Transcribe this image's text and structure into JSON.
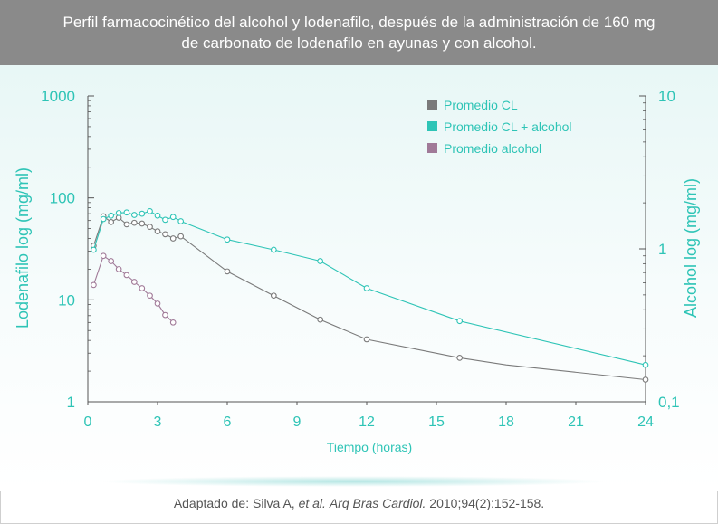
{
  "header": {
    "line1": "Perfil farmacocinético del alcohol y lodenafilo, después de la administración de 160 mg",
    "line2": "de carbonato de lodenafilo en ayunas y con alcohol."
  },
  "footer": {
    "prefix": "Adaptado de: Silva A, ",
    "etal": "et al.",
    "journal": "Arq Bras Cardiol.",
    "rest": " 2010;94(2):152-158."
  },
  "colors": {
    "teal": "#2ec4b6",
    "gray": "#7a7a7a",
    "mauve": "#a07a98",
    "axis": "#555555"
  },
  "chart_data": {
    "type": "line",
    "xlabel": "Tiempo (horas)",
    "ylabel_left": "Lodenafilo log (mg/ml)",
    "ylabel_right": "Alcohol log (mg/ml)",
    "x_ticks": [
      0,
      3,
      6,
      9,
      12,
      15,
      18,
      21,
      24
    ],
    "xlim": [
      0,
      24
    ],
    "y_left_scale": "log",
    "y_left_ticks": [
      {
        "value": 1,
        "label": "1"
      },
      {
        "value": 10,
        "label": "10"
      },
      {
        "value": 100,
        "label": "100"
      },
      {
        "value": 1000,
        "label": "1000"
      }
    ],
    "ylim_left": [
      1,
      1000
    ],
    "y_right_scale": "log",
    "y_right_ticks": [
      {
        "value": 0.1,
        "label": "0,1"
      },
      {
        "value": 1,
        "label": "1"
      },
      {
        "value": 10,
        "label": "10"
      }
    ],
    "ylim_right": [
      0.1,
      10
    ],
    "legend_position": "top-right",
    "grid": false,
    "series": [
      {
        "name": "Promedio CL",
        "color": "#7a7a7a",
        "axis": "left",
        "points": [
          [
            0.25,
            34
          ],
          [
            0.67,
            66
          ],
          [
            1.0,
            58
          ],
          [
            1.33,
            64
          ],
          [
            1.67,
            55
          ],
          [
            2.0,
            57
          ],
          [
            2.33,
            56
          ],
          [
            2.67,
            52
          ],
          [
            3.0,
            47
          ],
          [
            3.33,
            44
          ],
          [
            3.67,
            40
          ],
          [
            4.0,
            42
          ],
          [
            6.0,
            19
          ],
          [
            8.0,
            11
          ],
          [
            10.0,
            6.4
          ],
          [
            12.0,
            4.1
          ],
          [
            16.0,
            2.7
          ],
          [
            24.0,
            1.65
          ]
        ],
        "markers": [
          true,
          true,
          true,
          true,
          true,
          true,
          true,
          true,
          true,
          true,
          true,
          true,
          true,
          true,
          true,
          true,
          true,
          true
        ],
        "curve": [
          [
            0.25,
            34
          ],
          [
            0.67,
            66
          ],
          [
            1.0,
            58
          ],
          [
            1.33,
            64
          ],
          [
            1.67,
            55
          ],
          [
            2.0,
            57
          ],
          [
            2.33,
            56
          ],
          [
            2.67,
            52
          ],
          [
            3.0,
            47
          ],
          [
            3.33,
            44
          ],
          [
            3.67,
            40
          ],
          [
            4.0,
            42
          ],
          [
            6.0,
            19
          ],
          [
            8.0,
            11
          ],
          [
            10.0,
            6.4
          ],
          [
            12.0,
            4.1
          ],
          [
            16.0,
            2.7
          ],
          [
            18.0,
            2.3
          ],
          [
            24.0,
            1.65
          ]
        ]
      },
      {
        "name": "Promedio CL + alcohol",
        "color": "#2ec4b6",
        "axis": "left",
        "points": [
          [
            0.25,
            31
          ],
          [
            0.67,
            62
          ],
          [
            1.0,
            67
          ],
          [
            1.33,
            71
          ],
          [
            1.67,
            72
          ],
          [
            2.0,
            68
          ],
          [
            2.33,
            70
          ],
          [
            2.67,
            74
          ],
          [
            3.0,
            67
          ],
          [
            3.33,
            61
          ],
          [
            3.67,
            65
          ],
          [
            4.0,
            59
          ],
          [
            6.0,
            39
          ],
          [
            8.0,
            31
          ],
          [
            10.0,
            24
          ],
          [
            12.0,
            13
          ],
          [
            16.0,
            6.2
          ],
          [
            24.0,
            2.3
          ]
        ],
        "markers": [
          true,
          true,
          true,
          true,
          true,
          true,
          true,
          true,
          true,
          true,
          true,
          true,
          true,
          true,
          true,
          true,
          true,
          true
        ],
        "curve": [
          [
            0.25,
            31
          ],
          [
            0.67,
            62
          ],
          [
            1.0,
            67
          ],
          [
            1.33,
            71
          ],
          [
            1.67,
            72
          ],
          [
            2.0,
            68
          ],
          [
            2.33,
            70
          ],
          [
            2.67,
            74
          ],
          [
            3.0,
            67
          ],
          [
            3.33,
            61
          ],
          [
            3.67,
            65
          ],
          [
            4.0,
            59
          ],
          [
            6.0,
            39
          ],
          [
            8.0,
            31
          ],
          [
            10.0,
            24
          ],
          [
            12.0,
            13
          ],
          [
            16.0,
            6.2
          ],
          [
            24.0,
            2.3
          ]
        ]
      },
      {
        "name": "Promedio alcohol",
        "color": "#a07a98",
        "axis": "left",
        "points": [
          [
            0.25,
            14
          ],
          [
            0.67,
            27
          ],
          [
            1.0,
            24
          ],
          [
            1.33,
            20
          ],
          [
            1.67,
            17.5
          ],
          [
            2.0,
            15
          ],
          [
            2.33,
            13
          ],
          [
            2.67,
            11
          ],
          [
            3.0,
            9.2
          ],
          [
            3.33,
            7.1
          ],
          [
            3.67,
            6.0
          ]
        ],
        "markers": [
          true,
          true,
          true,
          true,
          true,
          true,
          true,
          true,
          true,
          true,
          true
        ],
        "curve": [
          [
            0.25,
            14
          ],
          [
            0.67,
            27
          ],
          [
            1.0,
            24
          ],
          [
            1.33,
            20
          ],
          [
            1.67,
            17.5
          ],
          [
            2.0,
            15
          ],
          [
            2.33,
            13
          ],
          [
            2.67,
            11
          ],
          [
            3.0,
            9.2
          ],
          [
            3.33,
            7.1
          ],
          [
            3.67,
            6.0
          ]
        ]
      }
    ]
  }
}
